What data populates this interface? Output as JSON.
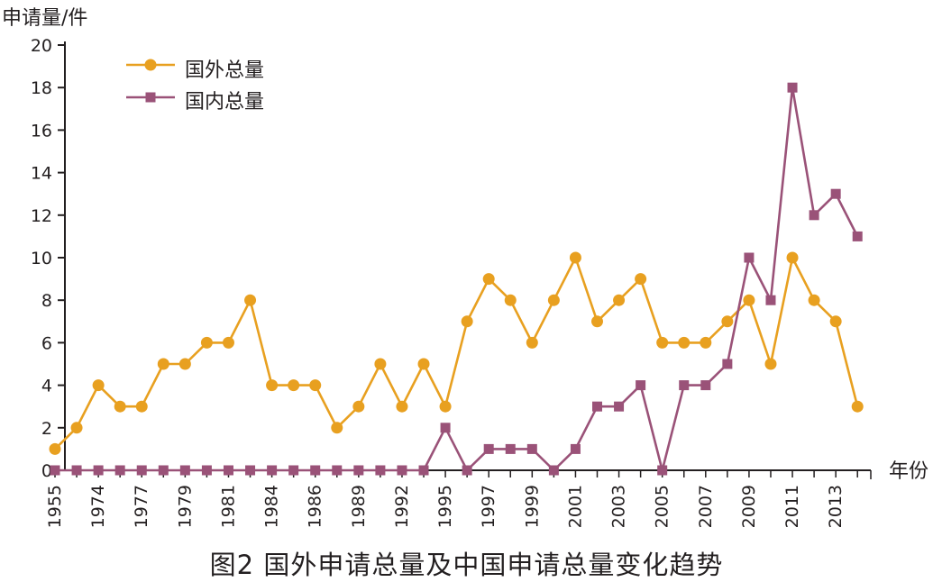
{
  "caption": "图2  国外申请总量及中国申请总量变化趋势",
  "chart_data": {
    "type": "line",
    "title": "",
    "ylabel": "申请量/件",
    "xlabel": "年份",
    "ylim": [
      0,
      20
    ],
    "yticks": [
      0,
      2,
      4,
      6,
      8,
      10,
      12,
      14,
      16,
      18,
      20
    ],
    "legend_position": "top-left",
    "categories": [
      "1955",
      "1972",
      "1974",
      "1976",
      "1977",
      "1978",
      "1979",
      "1980",
      "1981",
      "1982",
      "1984",
      "1985",
      "1986",
      "1987",
      "1989",
      "1990",
      "1992",
      "1993",
      "1995",
      "1996",
      "1997",
      "1998",
      "1999",
      "2000",
      "2001",
      "2002",
      "2003",
      "2004",
      "2005",
      "2006",
      "2007",
      "2008",
      "2009",
      "2010",
      "2011",
      "2012",
      "2013",
      "2014"
    ],
    "tick_labels": [
      "1955",
      "1974",
      "1977",
      "1979",
      "1981",
      "1984",
      "1986",
      "1989",
      "1992",
      "1995",
      "1997",
      "1999",
      "2001",
      "2003",
      "2005",
      "2007",
      "2009",
      "2011",
      "2013"
    ],
    "tick_label_indices": [
      0,
      2,
      4,
      6,
      8,
      10,
      12,
      14,
      16,
      18,
      20,
      22,
      24,
      26,
      28,
      30,
      32,
      34,
      36
    ],
    "series": [
      {
        "name": "国外总量",
        "color": "#e8a020",
        "marker": "circle",
        "values": [
          1,
          2,
          4,
          3,
          3,
          5,
          5,
          6,
          6,
          8,
          4,
          4,
          4,
          2,
          3,
          5,
          3,
          5,
          3,
          7,
          9,
          8,
          6,
          8,
          10,
          7,
          8,
          9,
          6,
          6,
          6,
          7,
          8,
          5,
          10,
          8,
          7,
          3
        ]
      },
      {
        "name": "国内总量",
        "color": "#9a5278",
        "marker": "square",
        "values": [
          0,
          0,
          0,
          0,
          0,
          0,
          0,
          0,
          0,
          0,
          0,
          0,
          0,
          0,
          0,
          0,
          0,
          0,
          2,
          0,
          1,
          1,
          1,
          0,
          1,
          3,
          3,
          4,
          0,
          4,
          4,
          5,
          10,
          8,
          18,
          12,
          13,
          11
        ]
      }
    ]
  }
}
